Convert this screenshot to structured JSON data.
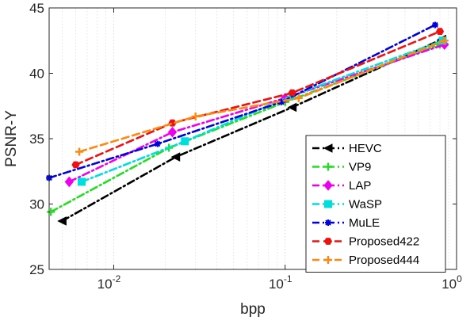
{
  "chart_data": {
    "type": "line",
    "title": "",
    "xlabel": "bpp",
    "ylabel": "PSNR-Y",
    "xscale": "log",
    "xlim": [
      0.0042,
      1.0
    ],
    "ylim": [
      25,
      45
    ],
    "grid": "x-minor-and-major",
    "legend_placement": "bottom-right",
    "x_ticks": [
      {
        "value": 0.01,
        "base": "10",
        "exp": "-2"
      },
      {
        "value": 0.1,
        "base": "10",
        "exp": "-1"
      },
      {
        "value": 1.0,
        "base": "10",
        "exp": "0"
      }
    ],
    "y_ticks": [
      {
        "value": 25,
        "label": "25"
      },
      {
        "value": 30,
        "label": "30"
      },
      {
        "value": 35,
        "label": "35"
      },
      {
        "value": 40,
        "label": "40"
      },
      {
        "value": 45,
        "label": "45"
      }
    ],
    "series": [
      {
        "name": "HEVC",
        "color": "#000000",
        "marker": "triangle-left",
        "dash": "9,4,2,4",
        "points": [
          [
            0.005,
            28.7
          ],
          [
            0.023,
            33.6
          ],
          [
            0.11,
            37.4
          ],
          [
            0.82,
            42.6
          ]
        ]
      },
      {
        "name": "VP9",
        "color": "#22dd22",
        "marker": "plus",
        "dash": "9,4,2,4",
        "points": [
          [
            0.0043,
            29.4
          ],
          [
            0.021,
            34.3
          ],
          [
            0.1,
            37.8
          ],
          [
            0.8,
            42.2
          ]
        ]
      },
      {
        "name": "LAP",
        "color": "#ee00ee",
        "marker": "diamond",
        "dash": "9,4,2,4",
        "points": [
          [
            0.0055,
            31.7
          ],
          [
            0.022,
            35.5
          ],
          [
            0.1,
            38.1
          ],
          [
            0.85,
            42.2
          ]
        ]
      },
      {
        "name": "WaSP",
        "color": "#00dddd",
        "marker": "square",
        "dash": "9,4,2,4",
        "points": [
          [
            0.0065,
            31.7
          ],
          [
            0.026,
            34.8
          ],
          [
            0.11,
            38.3
          ],
          [
            0.83,
            42.5
          ]
        ]
      },
      {
        "name": "MuLE",
        "color": "#0000dd",
        "marker": "star",
        "dash": "9,4,2,4",
        "points": [
          [
            0.0042,
            32.0
          ],
          [
            0.018,
            34.6
          ],
          [
            0.095,
            37.8
          ],
          [
            0.75,
            43.7
          ]
        ]
      },
      {
        "name": "Proposed422",
        "color": "#ee1111",
        "marker": "hexagon",
        "dash": "9,5",
        "points": [
          [
            0.006,
            33.0
          ],
          [
            0.022,
            36.2
          ],
          [
            0.11,
            38.5
          ],
          [
            0.8,
            43.2
          ]
        ]
      },
      {
        "name": "Proposed444",
        "color": "#ff8811",
        "marker": "plus",
        "dash": "9,5",
        "points": [
          [
            0.0063,
            34.0
          ],
          [
            0.03,
            36.7
          ],
          [
            0.12,
            38.1
          ],
          [
            0.85,
            42.5
          ]
        ]
      }
    ]
  }
}
